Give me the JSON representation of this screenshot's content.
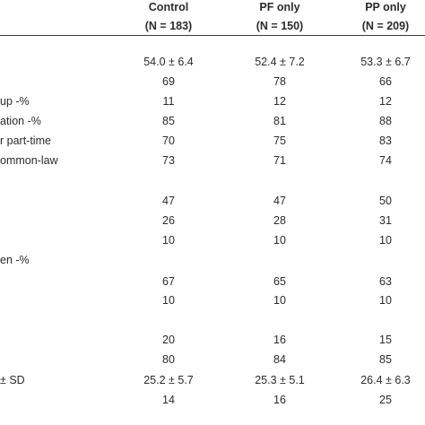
{
  "columns": [
    {
      "name": "Control",
      "n": "(N = 183)"
    },
    {
      "name": "PF only",
      "n": "(N = 150)"
    },
    {
      "name": "PP only",
      "n": "(N = 209)"
    }
  ],
  "rows": [
    {
      "label": "",
      "values": [
        "54.0 ± 6.4",
        "52.4 ± 7.2",
        "53.3 ± 6.7"
      ]
    },
    {
      "label": "",
      "values": [
        "69",
        "78",
        "66"
      ]
    },
    {
      "label": "up -%",
      "values": [
        "11",
        "12",
        "12"
      ]
    },
    {
      "label": "ation -%",
      "values": [
        "85",
        "81",
        "88"
      ]
    },
    {
      "label": "r part-time",
      "values": [
        "70",
        "75",
        "83"
      ]
    },
    {
      "label": "ommon-law",
      "values": [
        "73",
        "71",
        "74"
      ]
    },
    {
      "label": "",
      "values": [
        "47",
        "47",
        "50"
      ]
    },
    {
      "label": "",
      "values": [
        "26",
        "28",
        "31"
      ]
    },
    {
      "label": "",
      "values": [
        "10",
        "10",
        "10"
      ]
    },
    {
      "label": "en -%",
      "values": [
        "",
        "",
        ""
      ]
    },
    {
      "label": "",
      "values": [
        "67",
        "65",
        "63"
      ]
    },
    {
      "label": "",
      "values": [
        "10",
        "10",
        "10"
      ]
    },
    {
      "label": "",
      "values": [
        "20",
        "16",
        "15"
      ]
    },
    {
      "label": "",
      "values": [
        "80",
        "84",
        "85"
      ]
    },
    {
      "label": "± SD",
      "values": [
        "25.2 ± 5.7",
        "25.3 ± 5.1",
        "26.4 ± 6.3"
      ]
    },
    {
      "label": "",
      "values": [
        "14",
        "16",
        "25"
      ]
    }
  ]
}
